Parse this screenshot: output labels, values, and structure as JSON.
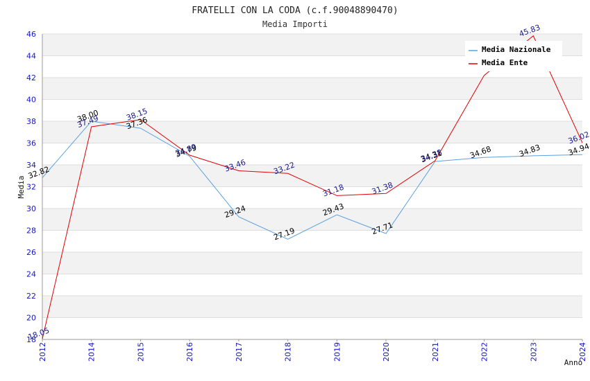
{
  "chart_data": {
    "type": "line",
    "title": "FRATELLI CON LA CODA (c.f.90048890470)",
    "subtitle": "Media Importi",
    "xlabel": "Anno",
    "ylabel": "Media",
    "ylim": [
      18,
      46
    ],
    "yticks": [
      18,
      20,
      22,
      24,
      26,
      28,
      30,
      32,
      34,
      36,
      38,
      40,
      42,
      44,
      46
    ],
    "categories": [
      "2012",
      "2014",
      "2015",
      "2016",
      "2017",
      "2018",
      "2019",
      "2020",
      "2021",
      "2022",
      "2023",
      "2024"
    ],
    "grid": true,
    "legend_position": "top-right",
    "series": [
      {
        "name": "Media Nazionale",
        "color": "#5aa0e0",
        "label_color": "#000000",
        "values": [
          32.82,
          38.0,
          37.36,
          34.79,
          29.24,
          27.19,
          29.43,
          27.71,
          34.31,
          34.68,
          34.83,
          34.94
        ],
        "labels": [
          "32.82",
          "38.00",
          "37.36",
          "34.79",
          "29.24",
          "27.19",
          "29.43",
          "27.71",
          "34.31",
          "34.68",
          "34.83",
          "34.94"
        ]
      },
      {
        "name": "Media Ente",
        "color": "#e00000",
        "label_color": "#1a1a8c",
        "values": [
          18.05,
          37.49,
          38.15,
          34.89,
          33.46,
          33.22,
          31.18,
          31.38,
          34.38,
          42.2,
          45.83,
          36.02
        ],
        "labels": [
          "18.05",
          "37.49",
          "38.15",
          "34.89",
          "33.46",
          "33.22",
          "31.18",
          "31.38",
          "34.38",
          "",
          "45.83",
          "36.02"
        ]
      }
    ]
  }
}
